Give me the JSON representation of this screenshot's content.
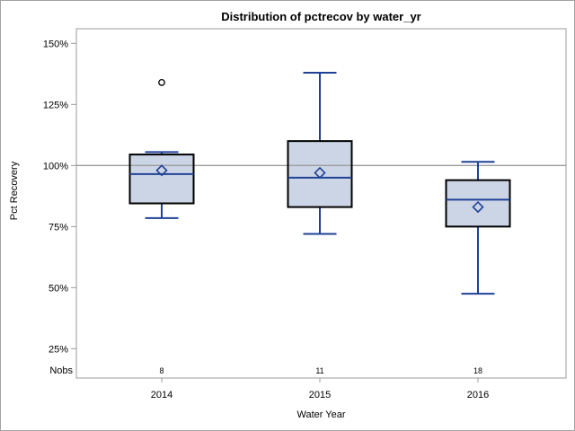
{
  "chart_data": {
    "type": "boxplot",
    "title": "Distribution of pctrecov by water_yr",
    "xlabel": "Water Year",
    "ylabel": "Pct Recovery",
    "categories": [
      "2014",
      "2015",
      "2016"
    ],
    "nobs_label": "Nobs",
    "nobs": [
      "8",
      "11",
      "18"
    ],
    "y_ticks": [
      150,
      125,
      100,
      75,
      50,
      25
    ],
    "y_tick_labels": [
      "150%",
      "125%",
      "100%",
      "75%",
      "50%",
      "25%"
    ],
    "ylim": [
      13,
      156
    ],
    "reference_line": 100,
    "grid": false,
    "legend": "none",
    "series": [
      {
        "category": "2014",
        "n": 8,
        "min": 78.5,
        "q1": 84.5,
        "median": 96.5,
        "q3": 104.5,
        "max": 105.5,
        "mean": 98,
        "outliers": [
          134
        ]
      },
      {
        "category": "2015",
        "n": 11,
        "min": 72,
        "q1": 83,
        "median": 95,
        "q3": 110,
        "max": 138,
        "mean": 97,
        "outliers": []
      },
      {
        "category": "2016",
        "n": 18,
        "min": 47.5,
        "q1": 75,
        "median": 86,
        "q3": 94,
        "max": 101.5,
        "mean": 83,
        "outliers": []
      }
    ],
    "colors": {
      "box_fill": "#ccd5e5",
      "box_border": "#000000",
      "whisker": "#1f4296",
      "median": "#1f4296",
      "mean_marker": "#1f4296",
      "reference_line": "#9b9b9b",
      "frame": "#9b9b9b",
      "outlier": "#000000",
      "text": "#000000"
    }
  }
}
